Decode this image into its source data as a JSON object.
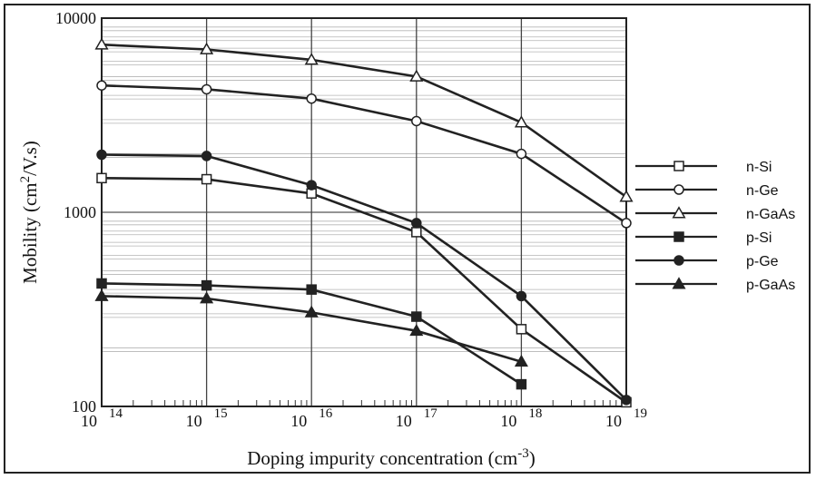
{
  "chart_data": {
    "type": "line",
    "ylabel": "Mobility (cm2/V.s)",
    "ylabel_parts": {
      "base": "Mobility (cm",
      "sup": "2",
      "rest": "/V.s)"
    },
    "xlabel": "Doping impurity concentration (cm-3)",
    "xlabel_parts": {
      "base": "Doping impurity concentration (cm",
      "sup": "-3",
      "rest": ")"
    },
    "x_scale": "log",
    "y_scale": "log",
    "xlim": [
      100000000000000.0,
      1e+19
    ],
    "ylim": [
      100,
      10000
    ],
    "grid": true,
    "legend_position": "right",
    "x_ticks": [
      {
        "base": "10",
        "exp": "14",
        "value": 100000000000000.0
      },
      {
        "base": "10",
        "exp": "15",
        "value": 1000000000000000.0
      },
      {
        "base": "10",
        "exp": "16",
        "value": 1e+16
      },
      {
        "base": "10",
        "exp": "17",
        "value": 1e+17
      },
      {
        "base": "10",
        "exp": "18",
        "value": 1e+18
      },
      {
        "base": "10",
        "exp": "19",
        "value": 1e+19
      }
    ],
    "y_ticks": [
      {
        "label": "10000",
        "value": 10000
      },
      {
        "label": "1000",
        "value": 1000
      },
      {
        "label": "100",
        "value": 100
      }
    ],
    "series": [
      {
        "name": "n-Si",
        "marker": "square-open",
        "x": [
          100000000000000.0,
          1000000000000000.0,
          1e+16,
          1e+17,
          1e+18,
          1e+19
        ],
        "y": [
          1500,
          1480,
          1250,
          790,
          250,
          105
        ]
      },
      {
        "name": "n-Ge",
        "marker": "circle-open",
        "x": [
          100000000000000.0,
          1000000000000000.0,
          1e+16,
          1e+17,
          1e+18,
          1e+19
        ],
        "y": [
          4500,
          4300,
          3850,
          2950,
          2000,
          880
        ]
      },
      {
        "name": "n-GaAs",
        "marker": "triangle-open",
        "x": [
          100000000000000.0,
          1000000000000000.0,
          1e+16,
          1e+17,
          1e+18,
          1e+19
        ],
        "y": [
          7300,
          6900,
          6100,
          5000,
          2900,
          1200
        ]
      },
      {
        "name": "p-Si",
        "marker": "square-filled",
        "x": [
          100000000000000.0,
          1000000000000000.0,
          1e+16,
          1e+17,
          1e+18
        ],
        "y": [
          430,
          420,
          400,
          290,
          130
        ]
      },
      {
        "name": "p-Ge",
        "marker": "circle-filled",
        "x": [
          100000000000000.0,
          1000000000000000.0,
          1e+16,
          1e+17,
          1e+18,
          1e+19
        ],
        "y": [
          1980,
          1950,
          1380,
          880,
          370,
          108
        ]
      },
      {
        "name": "p-GaAs",
        "marker": "triangle-filled",
        "x": [
          100000000000000.0,
          1000000000000000.0,
          1e+16,
          1e+17,
          1e+18
        ],
        "y": [
          370,
          360,
          305,
          245,
          170
        ]
      }
    ]
  }
}
